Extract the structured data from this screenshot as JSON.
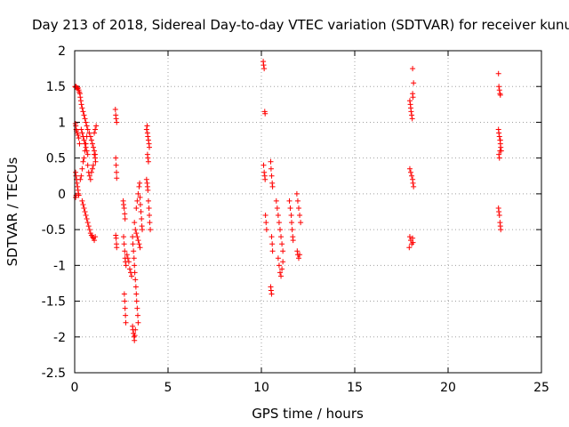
{
  "chart_data": {
    "type": "scatter",
    "title": "Day 213 of 2018, Sidereal Day-to-day VTEC variation (SDTVAR) for receiver kunu",
    "xlabel": "GPS time / hours",
    "ylabel": "SDTVAR / TECUs",
    "xlim": [
      0,
      25
    ],
    "ylim": [
      -2.5,
      2
    ],
    "xticks": [
      "0",
      "5",
      "10",
      "15",
      "20",
      "25"
    ],
    "yticks": [
      "2",
      "1.5",
      "1",
      "0.5",
      "0",
      "-0.5",
      "-1",
      "-1.5",
      "-2",
      "-2.5"
    ],
    "grid": true,
    "marker": "+",
    "color": "#ff0000",
    "points": [
      [
        0.02,
        1.5
      ],
      [
        0.05,
        1.49
      ],
      [
        0.08,
        1.5
      ],
      [
        0.12,
        1.48
      ],
      [
        0.15,
        1.47
      ],
      [
        0.18,
        1.48
      ],
      [
        0.22,
        1.45
      ],
      [
        0.25,
        1.42
      ],
      [
        0.28,
        1.4
      ],
      [
        0.3,
        1.35
      ],
      [
        0.33,
        1.3
      ],
      [
        0.36,
        1.25
      ],
      [
        0.4,
        1.2
      ],
      [
        0.45,
        1.15
      ],
      [
        0.5,
        1.1
      ],
      [
        0.55,
        1.05
      ],
      [
        0.6,
        1.0
      ],
      [
        0.65,
        0.95
      ],
      [
        0.7,
        0.9
      ],
      [
        0.78,
        0.85
      ],
      [
        0.85,
        0.8
      ],
      [
        0.9,
        0.75
      ],
      [
        0.95,
        0.7
      ],
      [
        1.0,
        0.65
      ],
      [
        1.05,
        0.6
      ],
      [
        1.1,
        0.55
      ],
      [
        0.04,
        0.98
      ],
      [
        0.06,
        0.95
      ],
      [
        0.08,
        0.9
      ],
      [
        0.1,
        0.88
      ],
      [
        0.14,
        0.85
      ],
      [
        0.18,
        0.82
      ],
      [
        0.22,
        0.78
      ],
      [
        0.26,
        0.7
      ],
      [
        0.05,
        0.3
      ],
      [
        0.07,
        0.25
      ],
      [
        0.1,
        0.2
      ],
      [
        0.12,
        0.15
      ],
      [
        0.15,
        0.1
      ],
      [
        0.18,
        0.05
      ],
      [
        0.2,
        0.0
      ],
      [
        0.22,
        -0.02
      ],
      [
        0.05,
        -0.05
      ],
      [
        0.08,
        -0.02
      ],
      [
        0.3,
        0.2
      ],
      [
        0.35,
        0.25
      ],
      [
        0.4,
        0.35
      ],
      [
        0.45,
        0.45
      ],
      [
        0.5,
        0.5
      ],
      [
        0.55,
        0.6
      ],
      [
        0.6,
        0.7
      ],
      [
        0.65,
        0.8
      ],
      [
        0.7,
        0.4
      ],
      [
        0.75,
        0.3
      ],
      [
        0.8,
        0.25
      ],
      [
        0.85,
        0.2
      ],
      [
        0.9,
        0.3
      ],
      [
        0.95,
        0.35
      ],
      [
        1.0,
        0.4
      ],
      [
        1.05,
        0.85
      ],
      [
        1.1,
        0.9
      ],
      [
        1.15,
        0.95
      ],
      [
        1.05,
        0.55
      ],
      [
        1.1,
        0.5
      ],
      [
        1.12,
        0.45
      ],
      [
        0.4,
        -0.1
      ],
      [
        0.45,
        -0.15
      ],
      [
        0.5,
        -0.2
      ],
      [
        0.55,
        -0.25
      ],
      [
        0.6,
        -0.3
      ],
      [
        0.65,
        -0.35
      ],
      [
        0.7,
        -0.4
      ],
      [
        0.75,
        -0.45
      ],
      [
        0.8,
        -0.5
      ],
      [
        0.85,
        -0.55
      ],
      [
        0.9,
        -0.58
      ],
      [
        0.95,
        -0.6
      ],
      [
        1.0,
        -0.62
      ],
      [
        1.05,
        -0.65
      ],
      [
        1.1,
        -0.6
      ],
      [
        0.35,
        0.9
      ],
      [
        0.4,
        0.85
      ],
      [
        0.45,
        0.8
      ],
      [
        0.5,
        0.75
      ],
      [
        0.55,
        0.7
      ],
      [
        0.6,
        0.65
      ],
      [
        0.65,
        0.6
      ],
      [
        0.7,
        0.55
      ],
      [
        2.18,
        1.18
      ],
      [
        2.2,
        1.1
      ],
      [
        2.22,
        1.05
      ],
      [
        2.25,
        1.0
      ],
      [
        2.2,
        0.5
      ],
      [
        2.22,
        0.4
      ],
      [
        2.24,
        0.3
      ],
      [
        2.25,
        0.22
      ],
      [
        2.2,
        -0.58
      ],
      [
        2.22,
        -0.62
      ],
      [
        2.24,
        -0.7
      ],
      [
        2.25,
        -0.75
      ],
      [
        2.6,
        -0.1
      ],
      [
        2.62,
        -0.15
      ],
      [
        2.65,
        -0.2
      ],
      [
        2.68,
        -0.28
      ],
      [
        2.7,
        -0.35
      ],
      [
        2.62,
        -0.6
      ],
      [
        2.65,
        -0.7
      ],
      [
        2.68,
        -0.8
      ],
      [
        2.7,
        -0.9
      ],
      [
        2.72,
        -0.95
      ],
      [
        2.75,
        -1.0
      ],
      [
        2.66,
        -1.4
      ],
      [
        2.68,
        -1.5
      ],
      [
        2.7,
        -1.6
      ],
      [
        2.72,
        -1.7
      ],
      [
        2.74,
        -1.8
      ],
      [
        2.8,
        -0.85
      ],
      [
        2.85,
        -0.9
      ],
      [
        2.9,
        -0.95
      ],
      [
        2.95,
        -1.05
      ],
      [
        3.0,
        -1.1
      ],
      [
        3.05,
        -1.15
      ],
      [
        3.1,
        -1.85
      ],
      [
        3.12,
        -1.9
      ],
      [
        3.15,
        -1.95
      ],
      [
        3.18,
        -2.0
      ],
      [
        3.2,
        -2.05
      ],
      [
        3.22,
        -1.98
      ],
      [
        3.25,
        -1.9
      ],
      [
        3.1,
        -0.6
      ],
      [
        3.12,
        -0.7
      ],
      [
        3.15,
        -0.8
      ],
      [
        3.18,
        -0.9
      ],
      [
        3.2,
        -1.0
      ],
      [
        3.22,
        -1.1
      ],
      [
        3.25,
        -1.2
      ],
      [
        3.28,
        -1.3
      ],
      [
        3.3,
        -1.4
      ],
      [
        3.32,
        -1.5
      ],
      [
        3.35,
        -1.6
      ],
      [
        3.38,
        -1.7
      ],
      [
        3.4,
        -1.8
      ],
      [
        3.2,
        -0.4
      ],
      [
        3.25,
        -0.5
      ],
      [
        3.3,
        -0.55
      ],
      [
        3.35,
        -0.6
      ],
      [
        3.4,
        -0.65
      ],
      [
        3.45,
        -0.7
      ],
      [
        3.5,
        -0.75
      ],
      [
        3.3,
        -0.2
      ],
      [
        3.35,
        -0.1
      ],
      [
        3.4,
        0.0
      ],
      [
        3.45,
        0.1
      ],
      [
        3.48,
        0.15
      ],
      [
        3.5,
        -0.05
      ],
      [
        3.52,
        -0.15
      ],
      [
        3.55,
        -0.25
      ],
      [
        3.58,
        -0.35
      ],
      [
        3.6,
        -0.45
      ],
      [
        3.62,
        -0.5
      ],
      [
        3.85,
        0.9
      ],
      [
        3.88,
        0.95
      ],
      [
        3.9,
        0.85
      ],
      [
        3.92,
        0.8
      ],
      [
        3.95,
        0.75
      ],
      [
        3.98,
        0.7
      ],
      [
        4.0,
        0.65
      ],
      [
        3.9,
        0.55
      ],
      [
        3.92,
        0.5
      ],
      [
        3.95,
        0.45
      ],
      [
        3.85,
        0.2
      ],
      [
        3.88,
        0.15
      ],
      [
        3.9,
        0.1
      ],
      [
        3.92,
        0.05
      ],
      [
        3.95,
        -0.1
      ],
      [
        3.98,
        -0.2
      ],
      [
        4.0,
        -0.3
      ],
      [
        4.02,
        -0.4
      ],
      [
        4.05,
        -0.5
      ],
      [
        10.1,
        1.85
      ],
      [
        10.12,
        1.8
      ],
      [
        10.15,
        1.75
      ],
      [
        10.18,
        1.15
      ],
      [
        10.2,
        1.12
      ],
      [
        10.12,
        0.4
      ],
      [
        10.15,
        0.3
      ],
      [
        10.18,
        0.25
      ],
      [
        10.2,
        0.2
      ],
      [
        10.22,
        -0.3
      ],
      [
        10.25,
        -0.4
      ],
      [
        10.28,
        -0.5
      ],
      [
        10.5,
        0.45
      ],
      [
        10.52,
        0.35
      ],
      [
        10.55,
        0.25
      ],
      [
        10.58,
        0.15
      ],
      [
        10.6,
        0.1
      ],
      [
        10.55,
        -0.6
      ],
      [
        10.58,
        -0.7
      ],
      [
        10.6,
        -0.8
      ],
      [
        10.5,
        -1.3
      ],
      [
        10.52,
        -1.35
      ],
      [
        10.55,
        -1.4
      ],
      [
        10.8,
        -0.1
      ],
      [
        10.85,
        -0.2
      ],
      [
        10.9,
        -0.3
      ],
      [
        10.95,
        -0.4
      ],
      [
        11.0,
        -0.5
      ],
      [
        11.05,
        -0.6
      ],
      [
        11.1,
        -0.7
      ],
      [
        11.15,
        -0.8
      ],
      [
        10.9,
        -0.9
      ],
      [
        10.95,
        -1.0
      ],
      [
        11.0,
        -1.1
      ],
      [
        11.05,
        -1.15
      ],
      [
        11.1,
        -1.05
      ],
      [
        11.15,
        -0.95
      ],
      [
        11.5,
        -0.1
      ],
      [
        11.55,
        -0.2
      ],
      [
        11.6,
        -0.3
      ],
      [
        11.62,
        -0.4
      ],
      [
        11.65,
        -0.5
      ],
      [
        11.68,
        -0.6
      ],
      [
        11.7,
        -0.65
      ],
      [
        11.9,
        0.0
      ],
      [
        11.95,
        -0.1
      ],
      [
        12.0,
        -0.2
      ],
      [
        12.05,
        -0.3
      ],
      [
        12.1,
        -0.4
      ],
      [
        11.92,
        -0.8
      ],
      [
        11.95,
        -0.85
      ],
      [
        12.0,
        -0.9
      ],
      [
        12.05,
        -0.85
      ],
      [
        17.95,
        1.3
      ],
      [
        17.98,
        1.25
      ],
      [
        18.0,
        1.2
      ],
      [
        18.02,
        1.15
      ],
      [
        18.05,
        1.1
      ],
      [
        18.08,
        1.05
      ],
      [
        18.1,
        1.4
      ],
      [
        18.12,
        1.35
      ],
      [
        18.15,
        1.55
      ],
      [
        18.1,
        1.75
      ],
      [
        17.95,
        0.35
      ],
      [
        18.0,
        0.3
      ],
      [
        18.05,
        0.25
      ],
      [
        18.1,
        0.2
      ],
      [
        18.12,
        0.15
      ],
      [
        18.15,
        0.1
      ],
      [
        17.95,
        -0.6
      ],
      [
        18.0,
        -0.65
      ],
      [
        18.05,
        -0.7
      ],
      [
        18.1,
        -0.62
      ],
      [
        18.12,
        -0.68
      ],
      [
        17.92,
        -0.75
      ],
      [
        22.7,
        1.68
      ],
      [
        22.72,
        1.5
      ],
      [
        22.75,
        1.45
      ],
      [
        22.78,
        1.4
      ],
      [
        22.8,
        1.38
      ],
      [
        22.7,
        0.9
      ],
      [
        22.72,
        0.85
      ],
      [
        22.75,
        0.8
      ],
      [
        22.78,
        0.75
      ],
      [
        22.8,
        0.7
      ],
      [
        22.82,
        0.65
      ],
      [
        22.85,
        0.6
      ],
      [
        22.72,
        0.55
      ],
      [
        22.75,
        0.5
      ],
      [
        22.78,
        0.6
      ],
      [
        22.8,
        0.75
      ],
      [
        22.7,
        -0.2
      ],
      [
        22.72,
        -0.25
      ],
      [
        22.75,
        -0.3
      ],
      [
        22.78,
        -0.4
      ],
      [
        22.8,
        -0.45
      ],
      [
        22.82,
        -0.5
      ]
    ]
  }
}
